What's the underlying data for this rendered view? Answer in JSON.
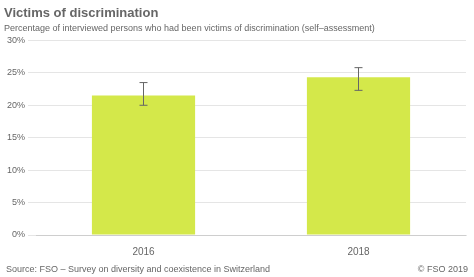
{
  "chart_data": {
    "type": "bar",
    "title": "Victims of discrimination",
    "subtitle": "Percentage of interviewed persons who had been victims of discrimination (self–assessment)",
    "categories": [
      "2016",
      "2018"
    ],
    "values": [
      21.5,
      24.3
    ],
    "errors_lower": [
      1.5,
      2.0
    ],
    "errors_upper": [
      2.0,
      1.5
    ],
    "color": "#d4e84a",
    "ylim": [
      0,
      30
    ],
    "yticks": [
      {
        "value": 0,
        "label": "0%"
      },
      {
        "value": 5,
        "label": "5%"
      },
      {
        "value": 10,
        "label": "10%"
      },
      {
        "value": 15,
        "label": "15%"
      },
      {
        "value": 20,
        "label": "20%"
      },
      {
        "value": 25,
        "label": "25%"
      },
      {
        "value": 30,
        "label": "30%"
      }
    ],
    "grid": true,
    "annotations": [
      "Source: FSO – Survey on diversity and coexistence in Switzerland",
      "© FSO 2019"
    ]
  }
}
